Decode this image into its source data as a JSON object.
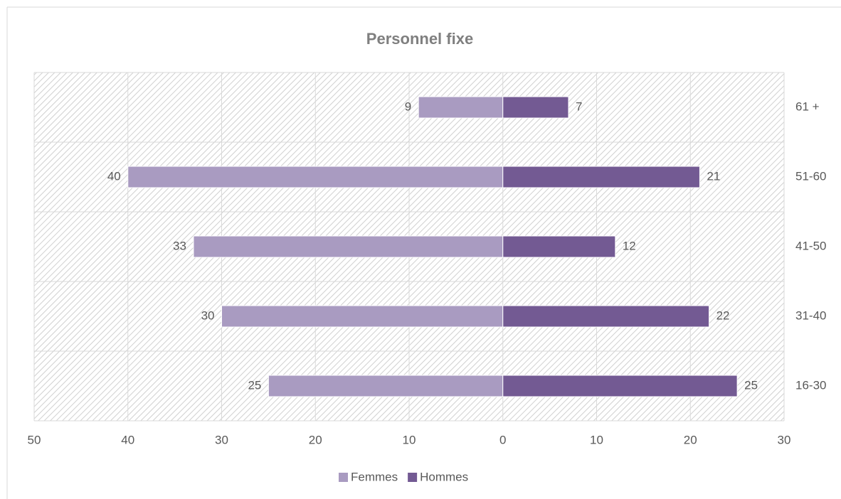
{
  "chart_data": {
    "type": "bar",
    "orientation": "horizontal",
    "stacked": "diverging",
    "title": "Personnel fixe",
    "categories": [
      "16-30",
      "31-40",
      "41-50",
      "51-60",
      "61 +"
    ],
    "series": [
      {
        "name": "Femmes",
        "color": "#a99bc1",
        "values": [
          -25,
          -30,
          -33,
          -40,
          -9
        ],
        "value_labels": [
          "25",
          "30",
          "33",
          "40",
          "9"
        ]
      },
      {
        "name": "Hommes",
        "color": "#735a93",
        "values": [
          25,
          22,
          12,
          21,
          7
        ]
      }
    ],
    "xlim": [
      -50,
      30
    ],
    "xticks": [
      {
        "value": -50,
        "label": "50"
      },
      {
        "value": -40,
        "label": "40"
      },
      {
        "value": -30,
        "label": "30"
      },
      {
        "value": -20,
        "label": "20"
      },
      {
        "value": -10,
        "label": "10"
      },
      0,
      10,
      20,
      30
    ],
    "grid": true,
    "legend": "bottom"
  }
}
